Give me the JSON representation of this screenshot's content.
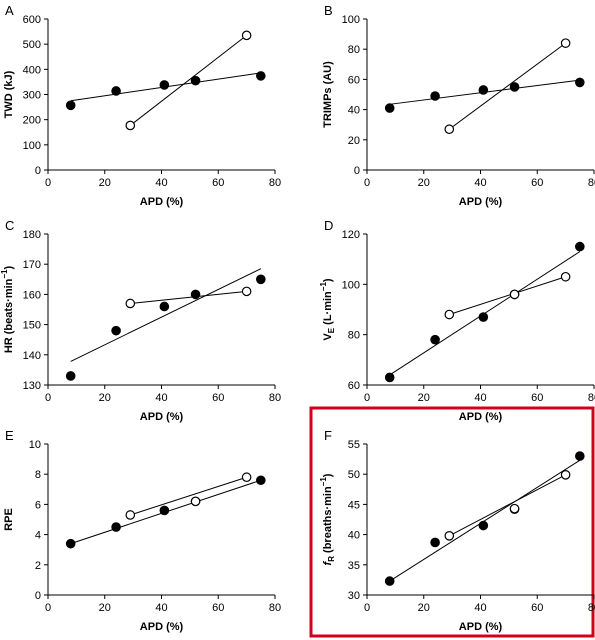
{
  "highlight_color": "#d0021b",
  "chart_data": [
    {
      "type": "scatter",
      "panel": "A",
      "xlabel": "APD (%)",
      "ylabel": "TWD (kJ)",
      "xlim": [
        0,
        80
      ],
      "ylim": [
        0,
        600
      ],
      "xticks": [
        0,
        20,
        40,
        60,
        80
      ],
      "yticks": [
        0,
        100,
        200,
        300,
        400,
        500,
        600
      ],
      "series": [
        {
          "marker": "filled",
          "x": [
            8,
            24,
            41,
            52,
            75
          ],
          "y": [
            257,
            314,
            338,
            355,
            374
          ],
          "fit": [
            [
              8,
              275
            ],
            [
              75,
              386
            ]
          ]
        },
        {
          "marker": "open",
          "x": [
            29,
            70
          ],
          "y": [
            177,
            535
          ],
          "fit": [
            [
              29,
              177
            ],
            [
              70,
              535
            ]
          ]
        }
      ]
    },
    {
      "type": "scatter",
      "panel": "B",
      "xlabel": "APD (%)",
      "ylabel": "TRIMPs (AU)",
      "xlim": [
        0,
        80
      ],
      "ylim": [
        0,
        100
      ],
      "xticks": [
        0,
        20,
        40,
        60,
        80
      ],
      "yticks": [
        0,
        20,
        40,
        60,
        80,
        100
      ],
      "series": [
        {
          "marker": "filled",
          "x": [
            8,
            24,
            41,
            52,
            75
          ],
          "y": [
            41,
            49,
            53,
            55,
            58
          ],
          "fit": [
            [
              8,
              43.5
            ],
            [
              75,
              59.5
            ]
          ]
        },
        {
          "marker": "open",
          "x": [
            29,
            70
          ],
          "y": [
            27,
            84
          ],
          "fit": [
            [
              29,
              27
            ],
            [
              70,
              84
            ]
          ]
        }
      ]
    },
    {
      "type": "scatter",
      "panel": "C",
      "xlabel": "APD (%)",
      "ylabel": "HR (beats·min",
      "ylabel_sup": "−1",
      "ylabel_tail": ")",
      "xlim": [
        0,
        80
      ],
      "ylim": [
        130,
        180
      ],
      "xticks": [
        0,
        20,
        40,
        60,
        80
      ],
      "yticks": [
        130,
        140,
        150,
        160,
        170,
        180
      ],
      "series": [
        {
          "marker": "filled",
          "x": [
            8,
            24,
            41,
            52,
            75
          ],
          "y": [
            133,
            148,
            156,
            160,
            165
          ],
          "fit": [
            [
              8,
              137.8
            ],
            [
              75,
              168.5
            ]
          ]
        },
        {
          "marker": "open",
          "x": [
            29,
            70
          ],
          "y": [
            157,
            161
          ],
          "fit": [
            [
              29,
              157
            ],
            [
              70,
              161
            ]
          ]
        }
      ]
    },
    {
      "type": "scatter",
      "panel": "D",
      "xlabel": "APD (%)",
      "ylabel": "V",
      "ylabel_sub": "E",
      "ylabel_tail": " (L·min",
      "ylabel_sup": "−1",
      "ylabel_end": ")",
      "xlim": [
        0,
        80
      ],
      "ylim": [
        60,
        120
      ],
      "xticks": [
        0,
        20,
        40,
        60,
        80
      ],
      "yticks": [
        60,
        80,
        100,
        120
      ],
      "series": [
        {
          "marker": "filled",
          "x": [
            8,
            24,
            41,
            52,
            75
          ],
          "y": [
            63,
            78,
            87,
            96,
            115
          ],
          "fit": [
            [
              8,
              64
            ],
            [
              75,
              113
            ]
          ]
        },
        {
          "marker": "open",
          "x": [
            29,
            52,
            70
          ],
          "y": [
            88,
            96,
            103
          ],
          "fit": [
            [
              29,
              88
            ],
            [
              70,
              103
            ]
          ]
        }
      ]
    },
    {
      "type": "scatter",
      "panel": "E",
      "xlabel": "APD (%)",
      "ylabel": "RPE",
      "xlim": [
        0,
        80
      ],
      "ylim": [
        0,
        10
      ],
      "xticks": [
        0,
        20,
        40,
        60,
        80
      ],
      "yticks": [
        0,
        2,
        4,
        6,
        8,
        10
      ],
      "series": [
        {
          "marker": "filled",
          "x": [
            8,
            24,
            41,
            52,
            75
          ],
          "y": [
            3.4,
            4.5,
            5.6,
            6.2,
            7.6
          ],
          "fit": [
            [
              8,
              3.4
            ],
            [
              75,
              7.6
            ]
          ]
        },
        {
          "marker": "open",
          "x": [
            29,
            52,
            70
          ],
          "y": [
            5.3,
            6.2,
            7.8
          ],
          "fit": [
            [
              29,
              5.3
            ],
            [
              70,
              7.8
            ]
          ]
        }
      ]
    },
    {
      "type": "scatter",
      "panel": "F",
      "xlabel": "APD (%)",
      "ylabel": "f",
      "ylabel_sub": "R",
      "ylabel_tail": " (breaths·min",
      "ylabel_sup": "−1",
      "ylabel_end": ")",
      "xlim": [
        0,
        80
      ],
      "ylim": [
        30,
        55
      ],
      "xticks": [
        0,
        20,
        40,
        60,
        80
      ],
      "yticks": [
        30,
        35,
        40,
        45,
        50,
        55
      ],
      "highlighted": true,
      "series": [
        {
          "marker": "filled",
          "x": [
            8,
            24,
            41,
            52,
            75
          ],
          "y": [
            32.3,
            38.7,
            41.5,
            44.2,
            53
          ],
          "fit": [
            [
              8,
              32.3
            ],
            [
              75,
              52.3
            ]
          ]
        },
        {
          "marker": "open",
          "x": [
            29,
            52,
            70
          ],
          "y": [
            39.8,
            44.3,
            49.9
          ],
          "fit": [
            [
              29,
              39.8
            ],
            [
              70,
              49.9
            ]
          ]
        }
      ]
    }
  ]
}
